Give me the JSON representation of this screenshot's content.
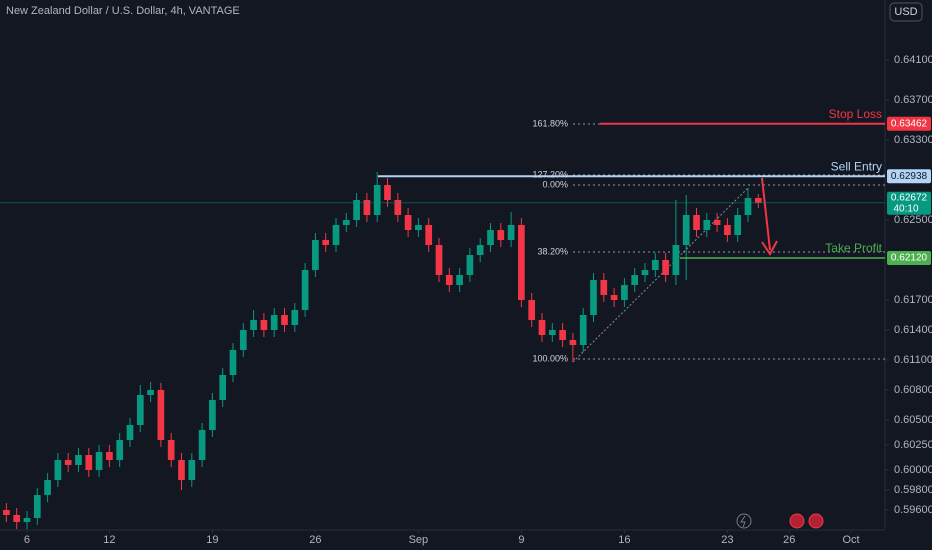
{
  "chart_data": {
    "type": "candlestick",
    "title": "New Zealand Dollar / U.S. Dollar, 4h, VANTAGE",
    "currency": "USD",
    "up_color": "#089981",
    "down_color": "#f23645",
    "x": [
      -1,
      -0.5,
      0,
      0.5,
      1,
      1.5,
      2,
      2.5,
      3,
      3.5,
      4,
      4.5,
      5,
      5.5,
      6,
      6.5,
      7,
      7.5,
      8,
      8.5,
      9,
      9.5,
      10,
      10.5,
      11,
      11.5,
      12,
      12.5,
      13,
      13.5,
      14,
      14.5,
      15,
      15.5,
      16,
      16.5,
      17,
      17.5,
      18,
      18.5,
      19,
      19.5,
      20,
      20.5,
      21,
      21.5,
      22,
      22.5,
      23,
      23.5,
      24,
      24.5,
      25,
      25.5,
      26,
      26.5,
      27,
      27.5,
      28,
      28.5,
      29,
      29.5,
      30,
      30.5,
      31,
      31.5,
      32,
      32.5,
      33,
      33.5,
      34,
      34.5,
      35,
      35.5
    ],
    "open": [
      0.596,
      0.5955,
      0.5948,
      0.5952,
      0.5975,
      0.599,
      0.601,
      0.6005,
      0.6015,
      0.6,
      0.6018,
      0.601,
      0.603,
      0.6045,
      0.6075,
      0.608,
      0.603,
      0.601,
      0.599,
      0.601,
      0.604,
      0.607,
      0.6095,
      0.612,
      0.614,
      0.615,
      0.614,
      0.6155,
      0.6145,
      0.616,
      0.62,
      0.623,
      0.6225,
      0.6245,
      0.625,
      0.627,
      0.6255,
      0.6285,
      0.627,
      0.6255,
      0.624,
      0.6245,
      0.6225,
      0.6195,
      0.6185,
      0.6195,
      0.6215,
      0.6225,
      0.624,
      0.623,
      0.6245,
      0.617,
      0.615,
      0.6135,
      0.614,
      0.613,
      0.6125,
      0.6155,
      0.619,
      0.6175,
      0.617,
      0.6185,
      0.6195,
      0.62,
      0.621,
      0.6195,
      0.6225,
      0.6255,
      0.624,
      0.625,
      0.6245,
      0.6235,
      0.6255,
      0.6272
    ],
    "high": [
      0.5967,
      0.5962,
      0.5959,
      0.5982,
      0.5997,
      0.6017,
      0.6017,
      0.6022,
      0.6022,
      0.6025,
      0.6025,
      0.6037,
      0.6052,
      0.6085,
      0.6088,
      0.6087,
      0.6037,
      0.6017,
      0.6017,
      0.6047,
      0.6077,
      0.6102,
      0.6127,
      0.6147,
      0.616,
      0.6157,
      0.6162,
      0.6162,
      0.6167,
      0.6207,
      0.6237,
      0.6237,
      0.6252,
      0.6257,
      0.6277,
      0.6277,
      0.6298,
      0.6292,
      0.6277,
      0.6262,
      0.6252,
      0.6252,
      0.6232,
      0.6202,
      0.6202,
      0.6222,
      0.6232,
      0.6247,
      0.6247,
      0.6258,
      0.6252,
      0.6177,
      0.6157,
      0.6147,
      0.6147,
      0.6137,
      0.6162,
      0.6197,
      0.6197,
      0.6182,
      0.6192,
      0.6202,
      0.6207,
      0.6217,
      0.6217,
      0.627,
      0.6275,
      0.6262,
      0.6257,
      0.6257,
      0.6252,
      0.6262,
      0.6282,
      0.6276
    ],
    "low": [
      0.5948,
      0.5941,
      0.5941,
      0.5945,
      0.5968,
      0.5983,
      0.5998,
      0.5998,
      0.5993,
      0.5993,
      0.6003,
      0.6003,
      0.6023,
      0.6038,
      0.6068,
      0.6023,
      0.6003,
      0.598,
      0.5983,
      0.6003,
      0.6033,
      0.6063,
      0.6088,
      0.6113,
      0.6133,
      0.6133,
      0.6133,
      0.6138,
      0.6138,
      0.6153,
      0.6193,
      0.6218,
      0.6218,
      0.6238,
      0.6243,
      0.6248,
      0.6248,
      0.6263,
      0.6248,
      0.6233,
      0.6233,
      0.6218,
      0.6188,
      0.6178,
      0.6178,
      0.6188,
      0.6208,
      0.6218,
      0.6223,
      0.6223,
      0.6163,
      0.6143,
      0.6128,
      0.6128,
      0.6123,
      0.6108,
      0.6118,
      0.6148,
      0.6168,
      0.6163,
      0.6163,
      0.6178,
      0.6188,
      0.6193,
      0.6188,
      0.6185,
      0.619,
      0.6233,
      0.6233,
      0.6238,
      0.6228,
      0.6228,
      0.6248,
      0.6262
    ],
    "close": [
      0.5955,
      0.5948,
      0.5952,
      0.5975,
      0.599,
      0.601,
      0.6005,
      0.6015,
      0.6,
      0.6018,
      0.601,
      0.603,
      0.6045,
      0.6075,
      0.608,
      0.603,
      0.601,
      0.599,
      0.601,
      0.604,
      0.607,
      0.6095,
      0.612,
      0.614,
      0.615,
      0.614,
      0.6155,
      0.6145,
      0.616,
      0.62,
      0.623,
      0.6225,
      0.6245,
      0.625,
      0.627,
      0.6255,
      0.6285,
      0.627,
      0.6255,
      0.624,
      0.6245,
      0.6225,
      0.6195,
      0.6185,
      0.6195,
      0.6215,
      0.6225,
      0.624,
      0.623,
      0.6245,
      0.617,
      0.615,
      0.6135,
      0.614,
      0.613,
      0.6125,
      0.6155,
      0.619,
      0.6175,
      0.617,
      0.6185,
      0.6195,
      0.62,
      0.621,
      0.6195,
      0.6225,
      0.6255,
      0.624,
      0.625,
      0.6245,
      0.6235,
      0.6255,
      0.6272,
      0.62672
    ],
    "xlim": [
      -1.31,
      41.65
    ],
    "xticks": [
      {
        "value": 0,
        "label": "6"
      },
      {
        "value": 4,
        "label": "12"
      },
      {
        "value": 9,
        "label": "19"
      },
      {
        "value": 14,
        "label": "26"
      },
      {
        "value": 19,
        "label": "Sep"
      },
      {
        "value": 24,
        "label": "9"
      },
      {
        "value": 29,
        "label": "16"
      },
      {
        "value": 34,
        "label": "23"
      },
      {
        "value": 37,
        "label": "26"
      },
      {
        "value": 40,
        "label": "Oct"
      }
    ],
    "ylim": [
      0.594,
      0.647
    ],
    "yticks": [
      {
        "value": 0.596,
        "label": "0.59600"
      },
      {
        "value": 0.598,
        "label": "0.59800"
      },
      {
        "value": 0.6,
        "label": "0.60000"
      },
      {
        "value": 0.6025,
        "label": "0.60250"
      },
      {
        "value": 0.605,
        "label": "0.60500"
      },
      {
        "value": 0.608,
        "label": "0.60800"
      },
      {
        "value": 0.611,
        "label": "0.61100"
      },
      {
        "value": 0.614,
        "label": "0.61400"
      },
      {
        "value": 0.617,
        "label": "0.61700"
      },
      {
        "value": 0.625,
        "label": "0.62500"
      },
      {
        "value": 0.633,
        "label": "0.63300"
      },
      {
        "value": 0.637,
        "label": "0.63700"
      },
      {
        "value": 0.641,
        "label": "0.64100"
      }
    ],
    "levels": [
      {
        "name": "Stop Loss",
        "price": 0.63462,
        "color": "#f23645"
      },
      {
        "name": "Sell Entry",
        "price": 0.62938,
        "color": "#b2d4f5"
      },
      {
        "name": "Take Profit",
        "price": {
          "value": 0.6212,
          "label": "0.62120"
        },
        "color": "#4caf50"
      }
    ],
    "fib": [
      {
        "level": {
          "value": 161.8,
          "label": "161.80%"
        },
        "price": 0.6346
      },
      {
        "level": {
          "value": 127.2,
          "label": "127.20%"
        },
        "price": 0.6295
      },
      {
        "level": {
          "value": 0,
          "label": "0.00%"
        },
        "price": 0.6285
      },
      {
        "level": {
          "value": 38.2,
          "label": "38.20%"
        },
        "price": 0.6218
      },
      {
        "level": {
          "value": 100,
          "label": "100.00%"
        },
        "price": 0.6111
      }
    ],
    "current": {
      "price": 0.62672,
      "countdown": "40:10"
    }
  }
}
